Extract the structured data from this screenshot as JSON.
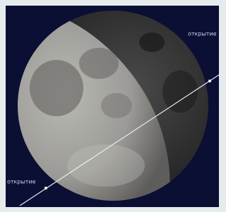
{
  "labels": {
    "top_right": "открытие",
    "bottom_left": "открытие"
  }
}
